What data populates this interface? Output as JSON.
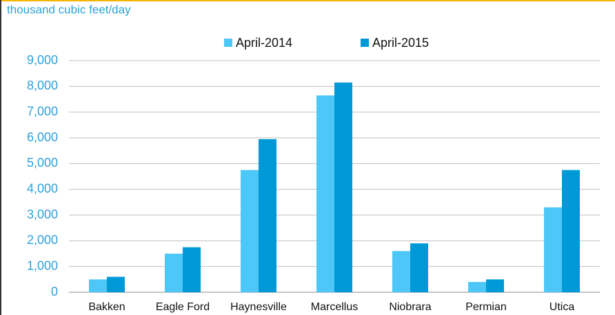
{
  "chart_data": {
    "type": "bar",
    "subtitle": "thousand cubic feet/day",
    "categories": [
      "Bakken",
      "Eagle Ford",
      "Haynesville",
      "Marcellus",
      "Niobrara",
      "Permian",
      "Utica"
    ],
    "series": [
      {
        "name": "April-2014",
        "color": "#4dc7f7",
        "values": [
          500,
          1500,
          4750,
          7650,
          1600,
          400,
          3300
        ]
      },
      {
        "name": "April-2015",
        "color": "#0099d8",
        "values": [
          600,
          1750,
          5950,
          8150,
          1900,
          500,
          4750
        ]
      }
    ],
    "ylim": [
      0,
      9000
    ],
    "yticks": [
      0,
      {
        "value": 1000,
        "label": "1,000"
      },
      {
        "value": 2000,
        "label": "2,000"
      },
      {
        "value": 3000,
        "label": "3,000"
      },
      {
        "value": 4000,
        "label": "4,000"
      },
      {
        "value": 5000,
        "label": "5,000"
      },
      {
        "value": 6000,
        "label": "6,000"
      },
      {
        "value": 7000,
        "label": "7,000"
      },
      {
        "value": 8000,
        "label": "8,000"
      },
      {
        "value": 9000,
        "label": "9,000"
      }
    ],
    "grid": true,
    "legend": "top"
  }
}
